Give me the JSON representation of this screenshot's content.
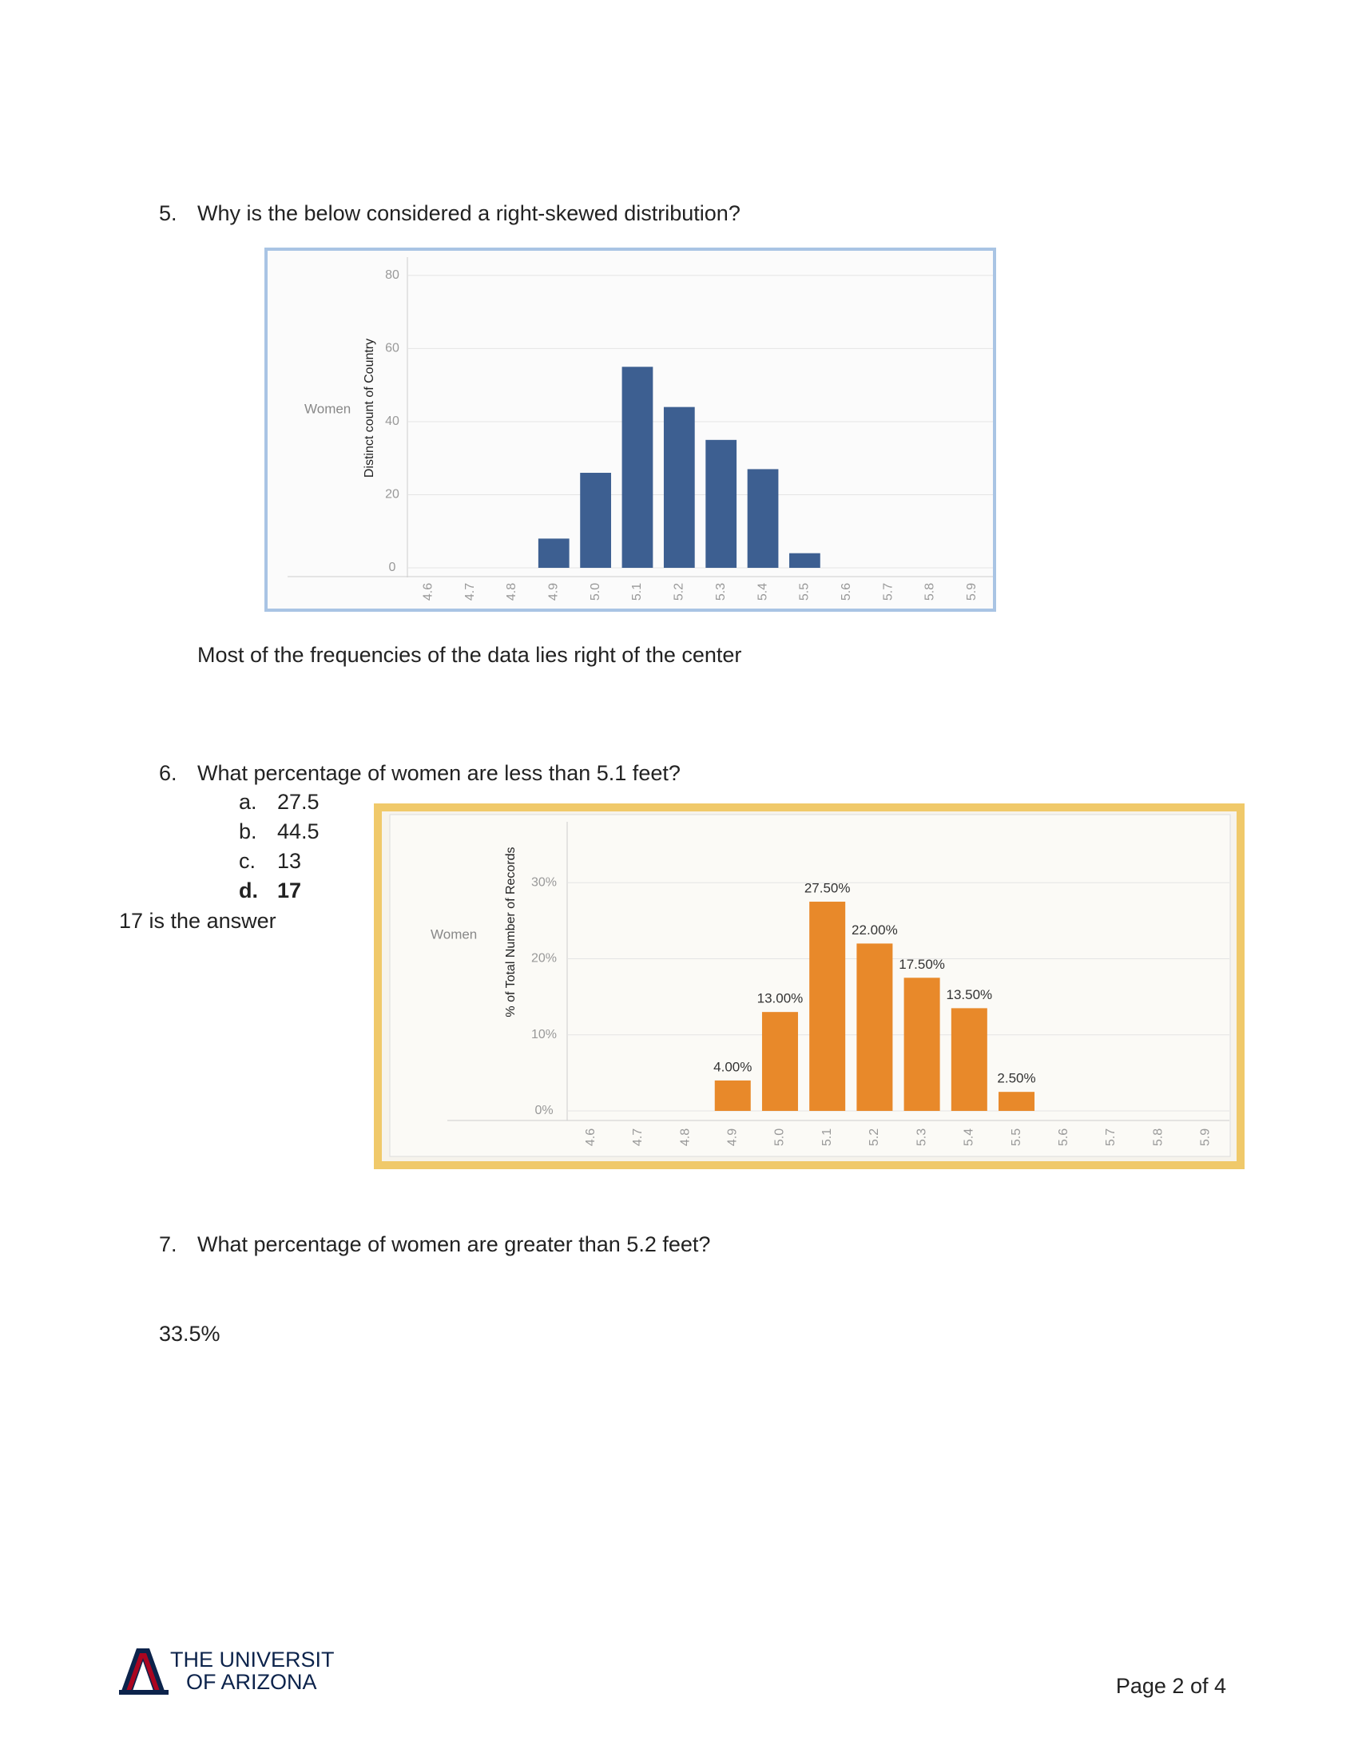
{
  "document": {
    "questions": [
      {
        "number": "5.",
        "text": "Why is the below considered a right-skewed distribution?",
        "answer": "Most of the frequencies of the data lies right of the center"
      },
      {
        "number": "6.",
        "text": "What percentage of women are less than 5.1 feet?",
        "options": [
          [
            "a.",
            "27.5"
          ],
          [
            "b.",
            "44.5"
          ],
          [
            "c.",
            "13"
          ],
          [
            "d.",
            "17"
          ]
        ],
        "answer": "17 is the answer"
      },
      {
        "number": "7.",
        "text": "What percentage of women are greater than 5.2 feet?",
        "answer": "33.5%"
      }
    ],
    "footer": {
      "logo_line1": "THE UNIVERSITY",
      "logo_line2": "OF ARIZONA",
      "page": "Page 2 of 4"
    }
  },
  "chart_data": [
    {
      "type": "bar",
      "row_label": "Women",
      "ylabel": "Distinct count of Country",
      "categories": [
        "4.6",
        "4.7",
        "4.8",
        "4.9",
        "5.0",
        "5.1",
        "5.2",
        "5.3",
        "5.4",
        "5.5",
        "5.6",
        "5.7",
        "5.8",
        "5.9"
      ],
      "values": [
        null,
        null,
        null,
        8,
        26,
        55,
        44,
        35,
        27,
        4,
        null,
        null,
        null,
        null
      ],
      "color": "#3d5f91",
      "ylim": [
        0,
        85
      ],
      "yticks": [
        0,
        20,
        40,
        60,
        80
      ],
      "grid": true
    },
    {
      "type": "bar",
      "row_label": "Women",
      "ylabel": "% of Total Number of Records",
      "categories": [
        "4.6",
        "4.7",
        "4.8",
        "4.9",
        "5.0",
        "5.1",
        "5.2",
        "5.3",
        "5.4",
        "5.5",
        "5.6",
        "5.7",
        "5.8",
        "5.9"
      ],
      "values": [
        null,
        null,
        null,
        4,
        13,
        27.5,
        22,
        17.5,
        13.5,
        2.5,
        null,
        null,
        null,
        null
      ],
      "value_labels": [
        null,
        null,
        null,
        "4.00%",
        "13.00%",
        "27.50%",
        "22.00%",
        "17.50%",
        "13.50%",
        "2.50%",
        null,
        null,
        null,
        null
      ],
      "color": "#e8892a",
      "ylim": [
        0,
        38
      ],
      "yticks": [
        {
          "value": 0,
          "label": "0%"
        },
        {
          "value": 10,
          "label": "10%"
        },
        {
          "value": 20,
          "label": "20%"
        },
        {
          "value": 30,
          "label": "30%"
        }
      ],
      "grid": true
    }
  ]
}
